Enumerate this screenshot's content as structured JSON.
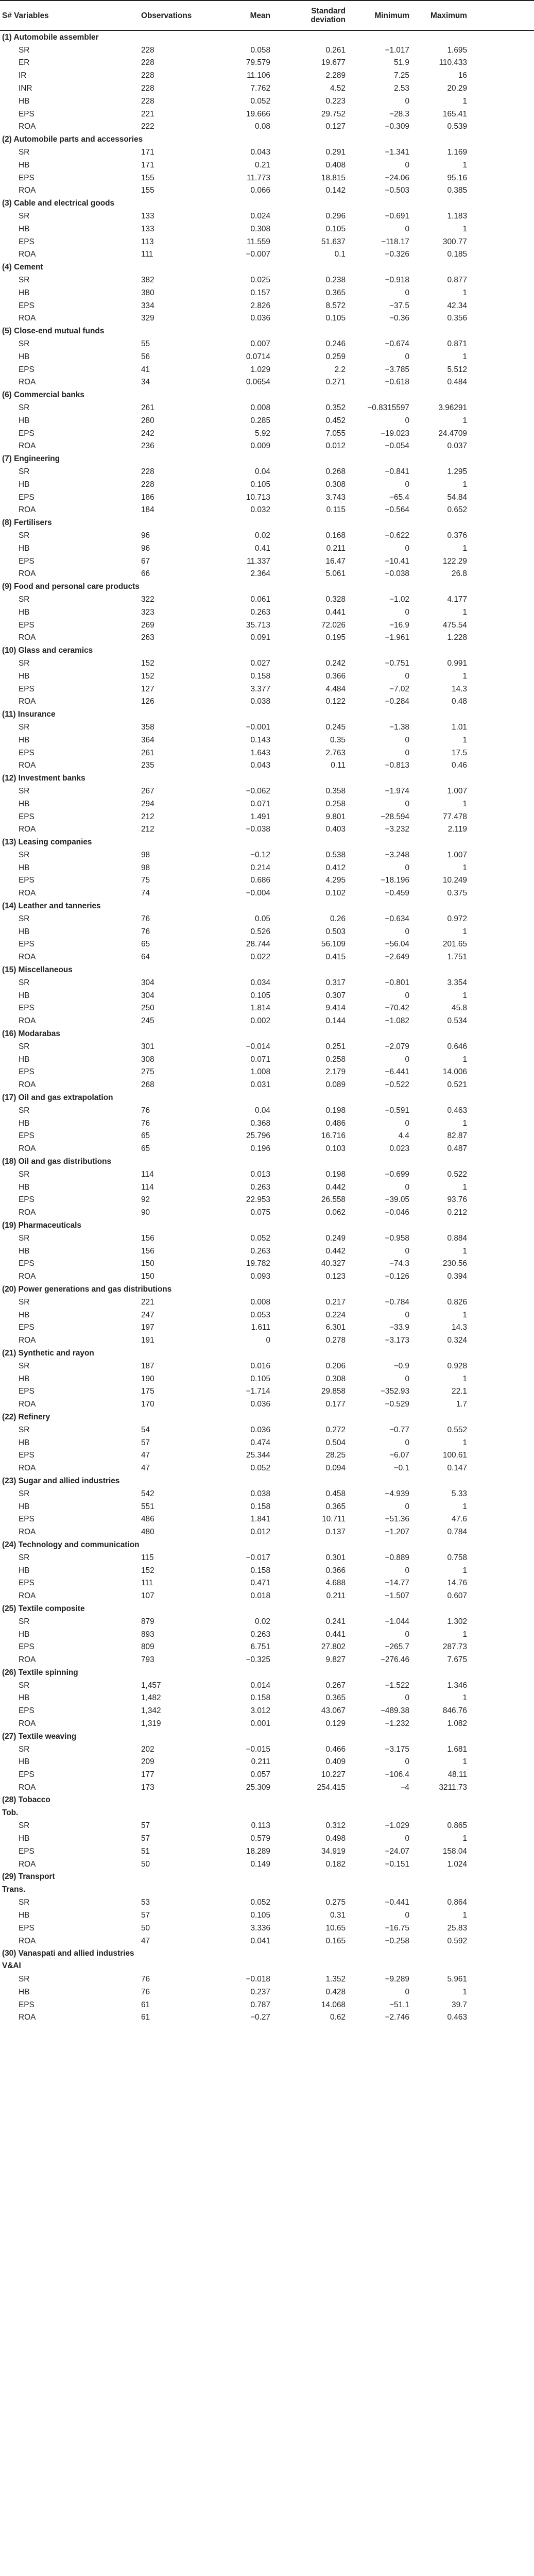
{
  "headers": [
    "S# Variables",
    "Observations",
    "Mean",
    "Standard deviation",
    "Minimum",
    "Maximum"
  ],
  "sections": [
    {
      "title": "(1) Automobile assembler",
      "rows": [
        [
          "SR",
          "228",
          "0.058",
          "0.261",
          "−1.017",
          "1.695"
        ],
        [
          "ER",
          "228",
          "79.579",
          "19.677",
          "51.9",
          "110.433"
        ],
        [
          "IR",
          "228",
          "11.106",
          "2.289",
          "7.25",
          "16"
        ],
        [
          "INR",
          "228",
          "7.762",
          "4.52",
          "2.53",
          "20.29"
        ],
        [
          "HB",
          "228",
          "0.052",
          "0.223",
          "0",
          "1"
        ],
        [
          "EPS",
          "221",
          "19.666",
          "29.752",
          "−28.3",
          "165.41"
        ],
        [
          "ROA",
          "222",
          "0.08",
          "0.127",
          "−0.309",
          "0.539"
        ]
      ]
    },
    {
      "title": "(2) Automobile parts and accessories",
      "rows": [
        [
          "SR",
          "171",
          "0.043",
          "0.291",
          "−1.341",
          "1.169"
        ],
        [
          "HB",
          "171",
          "0.21",
          "0.408",
          "0",
          "1"
        ],
        [
          "EPS",
          "155",
          "11.773",
          "18.815",
          "−24.06",
          "95.16"
        ],
        [
          "ROA",
          "155",
          "0.066",
          "0.142",
          "−0.503",
          "0.385"
        ]
      ]
    },
    {
      "title": "(3) Cable and electrical goods",
      "rows": [
        [
          "SR",
          "133",
          "0.024",
          "0.296",
          "−0.691",
          "1.183"
        ],
        [
          "HB",
          "133",
          "0.308",
          "0.105",
          "0",
          "1"
        ],
        [
          "EPS",
          "113",
          "11.559",
          "51.637",
          "−118.17",
          "300.77"
        ],
        [
          "ROA",
          "111",
          "−0.007",
          "0.1",
          "−0.326",
          "0.185"
        ]
      ]
    },
    {
      "title": "(4) Cement",
      "rows": [
        [
          "SR",
          "382",
          "0.025",
          "0.238",
          "−0.918",
          "0.877"
        ],
        [
          "HB",
          "380",
          "0.157",
          "0.365",
          "0",
          "1"
        ],
        [
          "EPS",
          "334",
          "2.826",
          "8.572",
          "−37.5",
          "42.34"
        ],
        [
          "ROA",
          "329",
          "0.036",
          "0.105",
          "−0.36",
          "0.356"
        ]
      ]
    },
    {
      "title": "(5) Close-end mutual funds",
      "rows": [
        [
          "SR",
          "55",
          "0.007",
          "0.246",
          "−0.674",
          "0.871"
        ],
        [
          "HB",
          "56",
          "0.0714",
          "0.259",
          "0",
          "1"
        ],
        [
          "EPS",
          "41",
          "1.029",
          "2.2",
          "−3.785",
          "5.512"
        ],
        [
          "ROA",
          "34",
          "0.0654",
          "0.271",
          "−0.618",
          "0.484"
        ]
      ]
    },
    {
      "title": "(6) Commercial banks",
      "rows": [
        [
          "SR",
          "261",
          "0.008",
          "0.352",
          "−0.8315597",
          "3.96291"
        ],
        [
          "HB",
          "280",
          "0.285",
          "0.452",
          "0",
          "1"
        ],
        [
          "EPS",
          "242",
          "5.92",
          "7.055",
          "−19.023",
          "24.4709"
        ],
        [
          "ROA",
          "236",
          "0.009",
          "0.012",
          "−0.054",
          "0.037"
        ]
      ]
    },
    {
      "title": "(7) Engineering",
      "rows": [
        [
          "SR",
          "228",
          "0.04",
          "0.268",
          "−0.841",
          "1.295"
        ],
        [
          "HB",
          "228",
          "0.105",
          "0.308",
          "0",
          "1"
        ],
        [
          "EPS",
          "186",
          "10.713",
          "3.743",
          "−65.4",
          "54.84"
        ],
        [
          "ROA",
          "184",
          "0.032",
          "0.115",
          "−0.564",
          "0.652"
        ]
      ]
    },
    {
      "title": "(8) Fertilisers",
      "rows": [
        [
          "SR",
          "96",
          "0.02",
          "0.168",
          "−0.622",
          "0.376"
        ],
        [
          "HB",
          "96",
          "0.41",
          "0.211",
          "0",
          "1"
        ],
        [
          "EPS",
          "67",
          "11.337",
          "16.47",
          "−10.41",
          "122.29"
        ],
        [
          "ROA",
          "66",
          "2.364",
          "5.061",
          "−0.038",
          "26.8"
        ]
      ]
    },
    {
      "title": "(9) Food and personal care products",
      "rows": [
        [
          "SR",
          "322",
          "0.061",
          "0.328",
          "−1.02",
          "4.177"
        ],
        [
          "HB",
          "323",
          "0.263",
          "0.441",
          "0",
          "1"
        ],
        [
          "EPS",
          "269",
          "35.713",
          "72.026",
          "−16.9",
          "475.54"
        ],
        [
          "ROA",
          "263",
          "0.091",
          "0.195",
          "−1.961",
          "1.228"
        ]
      ]
    },
    {
      "title": "(10) Glass and ceramics",
      "rows": [
        [
          "SR",
          "152",
          "0.027",
          "0.242",
          "−0.751",
          "0.991"
        ],
        [
          "HB",
          "152",
          "0.158",
          "0.366",
          "0",
          "1"
        ],
        [
          "EPS",
          "127",
          "3.377",
          "4.484",
          "−7.02",
          "14.3"
        ],
        [
          "ROA",
          "126",
          "0.038",
          "0.122",
          "−0.284",
          "0.48"
        ]
      ]
    },
    {
      "title": "(11) Insurance",
      "rows": [
        [
          "SR",
          "358",
          "−0.001",
          "0.245",
          "−1.38",
          "1.01"
        ],
        [
          "HB",
          "364",
          "0.143",
          "0.35",
          "0",
          "1"
        ],
        [
          "EPS",
          "261",
          "1.643",
          "2.763",
          "0",
          "17.5"
        ],
        [
          "ROA",
          "235",
          "0.043",
          "0.11",
          "−0.813",
          "0.46"
        ]
      ]
    },
    {
      "title": "(12) Investment banks",
      "rows": [
        [
          "SR",
          "267",
          "−0.062",
          "0.358",
          "−1.974",
          "1.007"
        ],
        [
          "HB",
          "294",
          "0.071",
          "0.258",
          "0",
          "1"
        ],
        [
          "EPS",
          "212",
          "1.491",
          "9.801",
          "−28.594",
          "77.478"
        ],
        [
          "ROA",
          "212",
          "−0.038",
          "0.403",
          "−3.232",
          "2.119"
        ]
      ]
    },
    {
      "title": "(13) Leasing companies",
      "rows": [
        [
          "SR",
          "98",
          "−0.12",
          "0.538",
          "−3.248",
          "1.007"
        ],
        [
          "HB",
          "98",
          "0.214",
          "0.412",
          "0",
          "1"
        ],
        [
          "EPS",
          "75",
          "0.686",
          "4.295",
          "−18.196",
          "10.249"
        ],
        [
          "ROA",
          "74",
          "−0.004",
          "0.102",
          "−0.459",
          "0.375"
        ]
      ]
    },
    {
      "title": "(14) Leather and tanneries",
      "rows": [
        [
          "SR",
          "76",
          "0.05",
          "0.26",
          "−0.634",
          "0.972"
        ],
        [
          "HB",
          "76",
          "0.526",
          "0.503",
          "0",
          "1"
        ],
        [
          "EPS",
          "65",
          "28.744",
          "56.109",
          "−56.04",
          "201.65"
        ],
        [
          "ROA",
          "64",
          "0.022",
          "0.415",
          "−2.649",
          "1.751"
        ]
      ]
    },
    {
      "title": "(15) Miscellaneous",
      "rows": [
        [
          "SR",
          "304",
          "0.034",
          "0.317",
          "−0.801",
          "3.354"
        ],
        [
          "HB",
          "304",
          "0.105",
          "0.307",
          "0",
          "1"
        ],
        [
          "EPS",
          "250",
          "1.814",
          "9.414",
          "−70.42",
          "45.8"
        ],
        [
          "ROA",
          "245",
          "0.002",
          "0.144",
          "−1.082",
          "0.534"
        ]
      ]
    },
    {
      "title": "(16) Modarabas",
      "rows": [
        [
          "SR",
          "301",
          "−0.014",
          "0.251",
          "−2.079",
          "0.646"
        ],
        [
          "HB",
          "308",
          "0.071",
          "0.258",
          "0",
          "1"
        ],
        [
          "EPS",
          "275",
          "1.008",
          "2.179",
          "−6.441",
          "14.006"
        ],
        [
          "ROA",
          "268",
          "0.031",
          "0.089",
          "−0.522",
          "0.521"
        ]
      ]
    },
    {
      "title": "(17) Oil and gas extrapolation",
      "rows": [
        [
          "SR",
          "76",
          "0.04",
          "0.198",
          "−0.591",
          "0.463"
        ],
        [
          "HB",
          "76",
          "0.368",
          "0.486",
          "0",
          "1"
        ],
        [
          "EPS",
          "65",
          "25.796",
          "16.716",
          "4.4",
          "82.87"
        ],
        [
          "ROA",
          "65",
          "0.196",
          "0.103",
          "0.023",
          "0.487"
        ]
      ]
    },
    {
      "title": "(18) Oil and gas distributions",
      "rows": [
        [
          "SR",
          "114",
          "0.013",
          "0.198",
          "−0.699",
          "0.522"
        ],
        [
          "HB",
          "114",
          "0.263",
          "0.442",
          "0",
          "1"
        ],
        [
          "EPS",
          "92",
          "22.953",
          "26.558",
          "−39.05",
          "93.76"
        ],
        [
          "ROA",
          "90",
          "0.075",
          "0.062",
          "−0.046",
          "0.212"
        ]
      ]
    },
    {
      "title": "(19) Pharmaceuticals",
      "rows": [
        [
          "SR",
          "156",
          "0.052",
          "0.249",
          "−0.958",
          "0.884"
        ],
        [
          "HB",
          "156",
          "0.263",
          "0.442",
          "0",
          "1"
        ],
        [
          "EPS",
          "150",
          "19.782",
          "40.327",
          "−74.3",
          "230.56"
        ],
        [
          "ROA",
          "150",
          "0.093",
          "0.123",
          "−0.126",
          "0.394"
        ]
      ]
    },
    {
      "title": "(20) Power generations and gas distributions",
      "rows": [
        [
          "SR",
          "221",
          "0.008",
          "0.217",
          "−0.784",
          "0.826"
        ],
        [
          "HB",
          "247",
          "0.053",
          "0.224",
          "0",
          "1"
        ],
        [
          "EPS",
          "197",
          "1.611",
          "6.301",
          "−33.9",
          "14.3"
        ],
        [
          "ROA",
          "191",
          "0",
          "0.278",
          "−3.173",
          "0.324"
        ]
      ]
    },
    {
      "title": "(21) Synthetic and rayon",
      "rows": [
        [
          "SR",
          "187",
          "0.016",
          "0.206",
          "−0.9",
          "0.928"
        ],
        [
          "HB",
          "190",
          "0.105",
          "0.308",
          "0",
          "1"
        ],
        [
          "EPS",
          "175",
          "−1.714",
          "29.858",
          "−352.93",
          "22.1"
        ],
        [
          "ROA",
          "170",
          "0.036",
          "0.177",
          "−0.529",
          "1.7"
        ]
      ]
    },
    {
      "title": "(22) Refinery",
      "rows": [
        [
          "SR",
          "54",
          "0.036",
          "0.272",
          "−0.77",
          "0.552"
        ],
        [
          "HB",
          "57",
          "0.474",
          "0.504",
          "0",
          "1"
        ],
        [
          "EPS",
          "47",
          "25.344",
          "28.25",
          "−6.07",
          "100.61"
        ],
        [
          "ROA",
          "47",
          "0.052",
          "0.094",
          "−0.1",
          "0.147"
        ]
      ]
    },
    {
      "title": "(23) Sugar and allied industries",
      "rows": [
        [
          "SR",
          "542",
          "0.038",
          "0.458",
          "−4.939",
          "5.33"
        ],
        [
          "HB",
          "551",
          "0.158",
          "0.365",
          "0",
          "1"
        ],
        [
          "EPS",
          "486",
          "1.841",
          "10.711",
          "−51.36",
          "47.6"
        ],
        [
          "ROA",
          "480",
          "0.012",
          "0.137",
          "−1.207",
          "0.784"
        ]
      ]
    },
    {
      "title": "(24) Technology and communication",
      "rows": [
        [
          "SR",
          "115",
          "−0.017",
          "0.301",
          "−0.889",
          "0.758"
        ],
        [
          "HB",
          "152",
          "0.158",
          "0.366",
          "0",
          "1"
        ],
        [
          "EPS",
          "111",
          "0.471",
          "4.688",
          "−14.77",
          "14.76"
        ],
        [
          "ROA",
          "107",
          "0.018",
          "0.211",
          "−1.507",
          "0.607"
        ]
      ]
    },
    {
      "title": "(25) Textile composite",
      "rows": [
        [
          "SR",
          "879",
          "0.02",
          "0.241",
          "−1.044",
          "1.302"
        ],
        [
          "HB",
          "893",
          "0.263",
          "0.441",
          "0",
          "1"
        ],
        [
          "EPS",
          "809",
          "6.751",
          "27.802",
          "−265.7",
          "287.73"
        ],
        [
          "ROA",
          "793",
          "−0.325",
          "9.827",
          "−276.46",
          "7.675"
        ]
      ]
    },
    {
      "title": "(26) Textile spinning",
      "rows": [
        [
          "SR",
          "1,457",
          "0.014",
          "0.267",
          "−1.522",
          "1.346"
        ],
        [
          "HB",
          "1,482",
          "0.158",
          "0.365",
          "0",
          "1"
        ],
        [
          "EPS",
          "1,342",
          "3.012",
          "43.067",
          "−489.38",
          "846.76"
        ],
        [
          "ROA",
          "1,319",
          "0.001",
          "0.129",
          "−1.232",
          "1.082"
        ]
      ]
    },
    {
      "title": "(27) Textile weaving",
      "rows": [
        [
          "SR",
          "202",
          "−0.015",
          "0.466",
          "−3.175",
          "1.681"
        ],
        [
          "HB",
          "209",
          "0.211",
          "0.409",
          "0",
          "1"
        ],
        [
          "EPS",
          "177",
          "0.057",
          "10.227",
          "−106.4",
          "48.11"
        ],
        [
          "ROA",
          "173",
          "25.309",
          "254.415",
          "−4",
          "3211.73"
        ]
      ]
    },
    {
      "title": "(28) Tobacco",
      "title2": "Tob.",
      "rows": [
        [
          "SR",
          "57",
          "0.113",
          "0.312",
          "−1.029",
          "0.865"
        ],
        [
          "HB",
          "57",
          "0.579",
          "0.498",
          "0",
          "1"
        ],
        [
          "EPS",
          "51",
          "18.289",
          "34.919",
          "−24.07",
          "158.04"
        ],
        [
          "ROA",
          "50",
          "0.149",
          "0.182",
          "−0.151",
          "1.024"
        ]
      ]
    },
    {
      "title": "(29) Transport",
      "title2": "Trans.",
      "rows": [
        [
          "SR",
          "53",
          "0.052",
          "0.275",
          "−0.441",
          "0.864"
        ],
        [
          "HB",
          "57",
          "0.105",
          "0.31",
          "0",
          "1"
        ],
        [
          "EPS",
          "50",
          "3.336",
          "10.65",
          "−16.75",
          "25.83"
        ],
        [
          "ROA",
          "47",
          "0.041",
          "0.165",
          "−0.258",
          "0.592"
        ]
      ]
    },
    {
      "title": "(30) Vanaspati and allied industries",
      "title2": "V&AI",
      "rows": [
        [
          "SR",
          "76",
          "−0.018",
          "1.352",
          "−9.289",
          "5.961"
        ],
        [
          "HB",
          "76",
          "0.237",
          "0.428",
          "0",
          "1"
        ],
        [
          "EPS",
          "61",
          "0.787",
          "14.068",
          "−51.1",
          "39.7"
        ],
        [
          "ROA",
          "61",
          "−0.27",
          "0.62",
          "−2.746",
          "0.463"
        ]
      ]
    }
  ]
}
